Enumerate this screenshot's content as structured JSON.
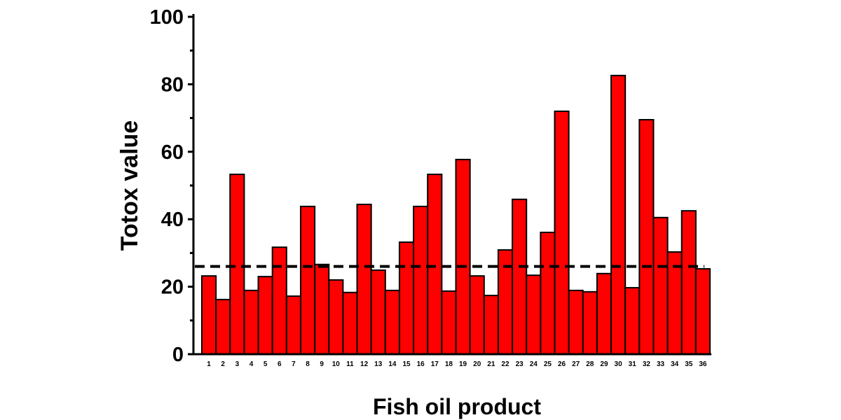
{
  "chart_data": {
    "type": "bar",
    "title": "",
    "xlabel": "Fish oil product",
    "ylabel": "Totox value",
    "ylim": [
      0,
      100
    ],
    "yticks": [
      0,
      20,
      40,
      60,
      80,
      100
    ],
    "grid": false,
    "bar_color": "#ff0000",
    "categories": [
      "1",
      "2",
      "3",
      "4",
      "5",
      "6",
      "7",
      "8",
      "9",
      "10",
      "11",
      "12",
      "13",
      "14",
      "15",
      "16",
      "17",
      "18",
      "19",
      "20",
      "21",
      "22",
      "23",
      "24",
      "25",
      "26",
      "27",
      "28",
      "29",
      "30",
      "31",
      "32",
      "33",
      "34",
      "35",
      "36"
    ],
    "values": [
      23.2,
      16.2,
      53.3,
      18.9,
      23.0,
      31.7,
      17.2,
      43.8,
      26.6,
      22.0,
      18.3,
      44.4,
      24.9,
      18.9,
      33.2,
      43.8,
      53.3,
      18.7,
      57.7,
      23.2,
      17.4,
      30.9,
      45.9,
      23.4,
      36.1,
      72.0,
      18.9,
      18.5,
      23.9,
      82.6,
      19.7,
      69.5,
      40.5,
      30.3,
      42.5,
      25.3
    ],
    "reference_line": {
      "value": 26,
      "style": "dashed",
      "color": "#000000"
    }
  }
}
